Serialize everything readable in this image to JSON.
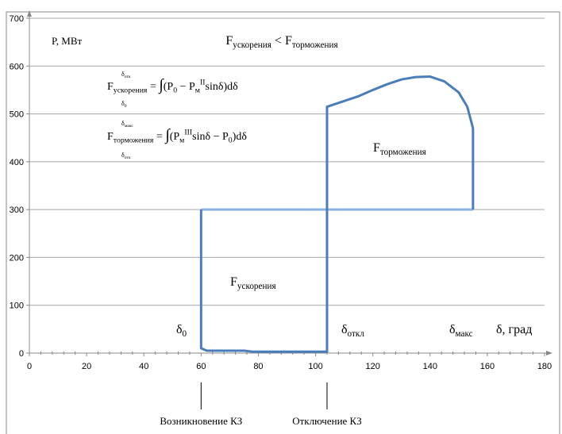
{
  "chart_data": {
    "type": "line",
    "y_label": "P, МВт",
    "x_label": "δ, град",
    "xlim": [
      0,
      180
    ],
    "xticks": [
      0,
      20,
      40,
      60,
      80,
      100,
      120,
      140,
      160,
      180
    ],
    "ylim": [
      0,
      700
    ],
    "yticks": [
      0,
      100,
      200,
      300,
      400,
      500,
      600,
      700
    ],
    "grid": true,
    "series": [
      {
        "color": "#4a7ebb",
        "x": [
          60,
          60,
          62,
          75,
          78,
          104,
          104,
          110,
          115,
          120,
          125,
          130,
          135,
          140,
          145,
          150,
          153,
          155,
          155
        ],
        "values": [
          300,
          10,
          5,
          5,
          3,
          3,
          515,
          527,
          537,
          550,
          562,
          572,
          577,
          578,
          568,
          545,
          515,
          470,
          300
        ]
      },
      {
        "color": "#8db4e2",
        "x": [
          60,
          155
        ],
        "values": [
          300,
          300
        ]
      }
    ],
    "markers": [
      {
        "x": 60,
        "label": "Возникновение КЗ"
      },
      {
        "x": 104,
        "label": "Отключение КЗ"
      }
    ],
    "rich_labels": [
      {
        "parts": [
          {
            "text": "F"
          },
          {
            "text": "ускорения",
            "style": "sub"
          },
          {
            "text": " < F"
          },
          {
            "text": "торможения",
            "style": "sub"
          }
        ]
      },
      {
        "parts": [
          {
            "text": "F"
          },
          {
            "text": "ускорения",
            "style": "sub"
          },
          {
            "text": " = "
          },
          {
            "text": "∫",
            "style": "big"
          },
          {
            "text": "(P"
          },
          {
            "text": "0",
            "style": "sub"
          },
          {
            "text": " − P"
          },
          {
            "text": "м",
            "style": "sub"
          },
          {
            "text": "II",
            "style": "sup"
          },
          {
            "text": "sinδ)dδ"
          }
        ]
      },
      {
        "parts": [
          {
            "text": "δ"
          },
          {
            "text": "отк",
            "style": "sub"
          }
        ]
      },
      {
        "parts": [
          {
            "text": "δ"
          },
          {
            "text": "0",
            "style": "sub"
          }
        ]
      },
      {
        "parts": [
          {
            "text": "F"
          },
          {
            "text": "торможения",
            "style": "sub"
          },
          {
            "text": " = "
          },
          {
            "text": "∫",
            "style": "big"
          },
          {
            "text": "(P"
          },
          {
            "text": "м",
            "style": "sub"
          },
          {
            "text": "III",
            "style": "sup"
          },
          {
            "text": "sinδ − P"
          },
          {
            "text": "0",
            "style": "sub"
          },
          {
            "text": ")dδ"
          }
        ]
      },
      {
        "parts": [
          {
            "text": "δ"
          },
          {
            "text": "макс",
            "style": "sub"
          }
        ]
      },
      {
        "parts": [
          {
            "text": "δ"
          },
          {
            "text": "отк",
            "style": "sub"
          }
        ]
      },
      {
        "parts": [
          {
            "text": "F"
          },
          {
            "text": "торможения",
            "style": "sub"
          }
        ]
      },
      {
        "parts": [
          {
            "text": "F"
          },
          {
            "text": "ускорения",
            "style": "sub"
          }
        ]
      },
      {
        "parts": [
          {
            "text": "δ"
          },
          {
            "text": "0",
            "style": "sub"
          }
        ]
      },
      {
        "parts": [
          {
            "text": "δ"
          },
          {
            "text": "откл",
            "style": "sub"
          }
        ]
      },
      {
        "parts": [
          {
            "text": "δ"
          },
          {
            "text": "макс",
            "style": "sub"
          }
        ]
      }
    ]
  }
}
